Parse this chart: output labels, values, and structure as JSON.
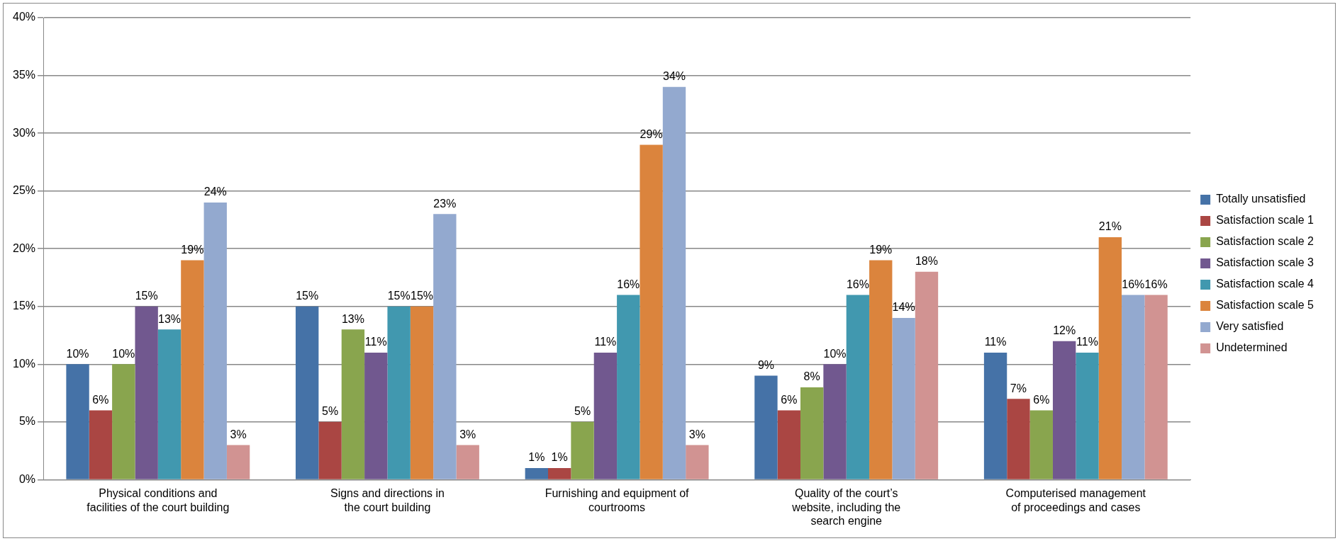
{
  "chart_data": {
    "type": "bar",
    "categories": [
      "Physical conditions and\nfacilities of the court building",
      "Signs and directions in\nthe court building",
      "Furnishing and equipment of\ncourtrooms",
      "Quality of the court’s\nwebsite, including the\nsearch engine",
      "Computerised management\nof proceedings and cases"
    ],
    "series": [
      {
        "name": "Totally unsatisfied",
        "color": "#4572a7",
        "values": [
          10,
          15,
          1,
          9,
          11
        ],
        "value_labels": [
          "10%",
          "15%",
          "1%",
          "9%",
          "11%"
        ]
      },
      {
        "name": "Satisfaction scale 1",
        "color": "#aa4643",
        "values": [
          6,
          5,
          1,
          6,
          7
        ],
        "value_labels": [
          "6%",
          "5%",
          "1%",
          "6%",
          "7%"
        ]
      },
      {
        "name": "Satisfaction scale 2",
        "color": "#89a54e",
        "values": [
          10,
          13,
          5,
          8,
          6
        ],
        "value_labels": [
          "10%",
          "13%",
          "5%",
          "8%",
          "6%"
        ]
      },
      {
        "name": "Satisfaction scale 3",
        "color": "#71588f",
        "values": [
          15,
          11,
          11,
          10,
          12
        ],
        "value_labels": [
          "15%",
          "11%",
          "11%",
          "10%",
          "12%"
        ]
      },
      {
        "name": "Satisfaction scale 4",
        "color": "#4198af",
        "values": [
          13,
          15,
          16,
          16,
          11
        ],
        "value_labels": [
          "13%",
          "15%",
          "16%",
          "16%",
          "11%"
        ]
      },
      {
        "name": "Satisfaction scale 5",
        "color": "#db843d",
        "values": [
          19,
          15,
          29,
          19,
          21
        ],
        "value_labels": [
          "19%",
          "15%",
          "29%",
          "19%",
          "21%"
        ]
      },
      {
        "name": "Very satisfied",
        "color": "#93a9cf",
        "values": [
          24,
          23,
          34,
          14,
          16
        ],
        "value_labels": [
          "24%",
          "23%",
          "34%",
          "14%",
          "16%"
        ]
      },
      {
        "name": "Undetermined",
        "color": "#d19392",
        "values": [
          3,
          3,
          3,
          18,
          16
        ],
        "value_labels": [
          "3%",
          "3%",
          "3%",
          "18%",
          "16%"
        ]
      }
    ],
    "ylim": [
      0,
      40
    ],
    "yticks": [
      {
        "value": 0,
        "label": "0%"
      },
      {
        "value": 5,
        "label": "5%"
      },
      {
        "value": 10,
        "label": "10%"
      },
      {
        "value": 15,
        "label": "15%"
      },
      {
        "value": 20,
        "label": "20%"
      },
      {
        "value": 25,
        "label": "25%"
      },
      {
        "value": 30,
        "label": "30%"
      },
      {
        "value": 35,
        "label": "35%"
      },
      {
        "value": 40,
        "label": "40%"
      }
    ],
    "grid": "y",
    "legend": "right"
  }
}
